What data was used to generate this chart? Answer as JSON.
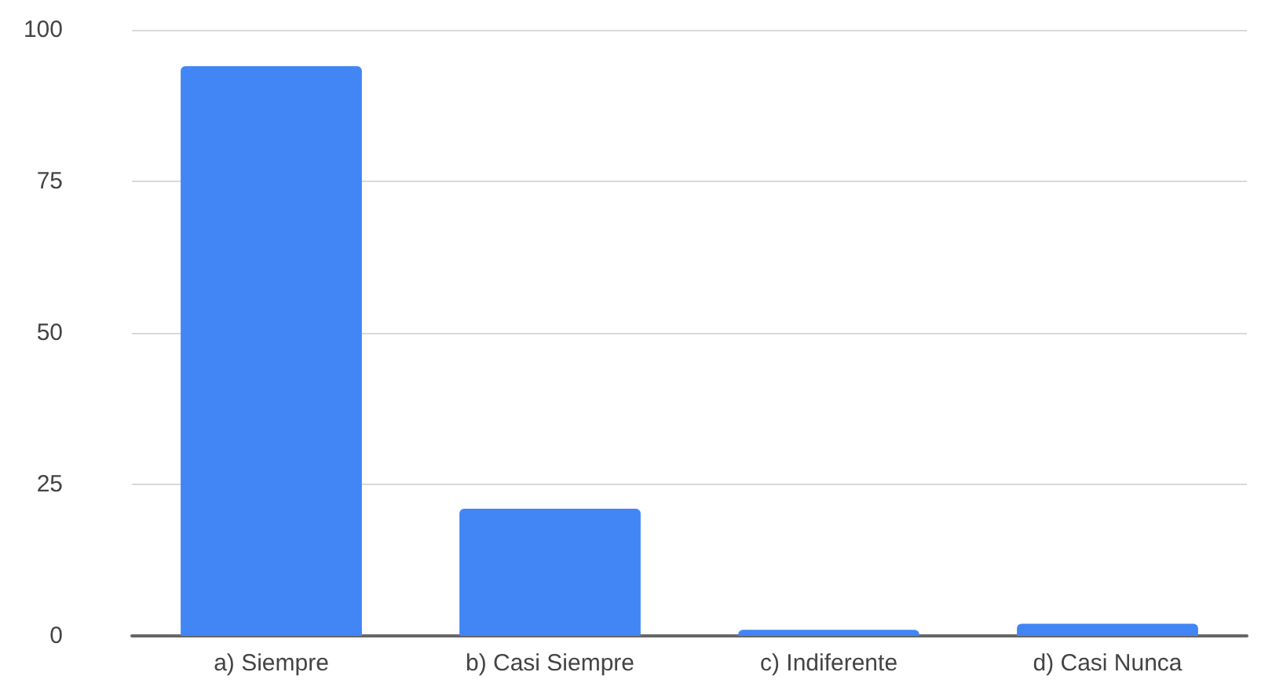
{
  "chart_data": {
    "type": "bar",
    "categories": [
      "a) Siempre",
      "b) Casi Siempre",
      "c) Indiferente",
      "d) Casi Nunca"
    ],
    "values": [
      94,
      21,
      1,
      2
    ],
    "color": "#4285f4",
    "ylim": [
      0,
      100
    ],
    "yticks": [
      0,
      25,
      50,
      75,
      100
    ],
    "grid": "y"
  }
}
